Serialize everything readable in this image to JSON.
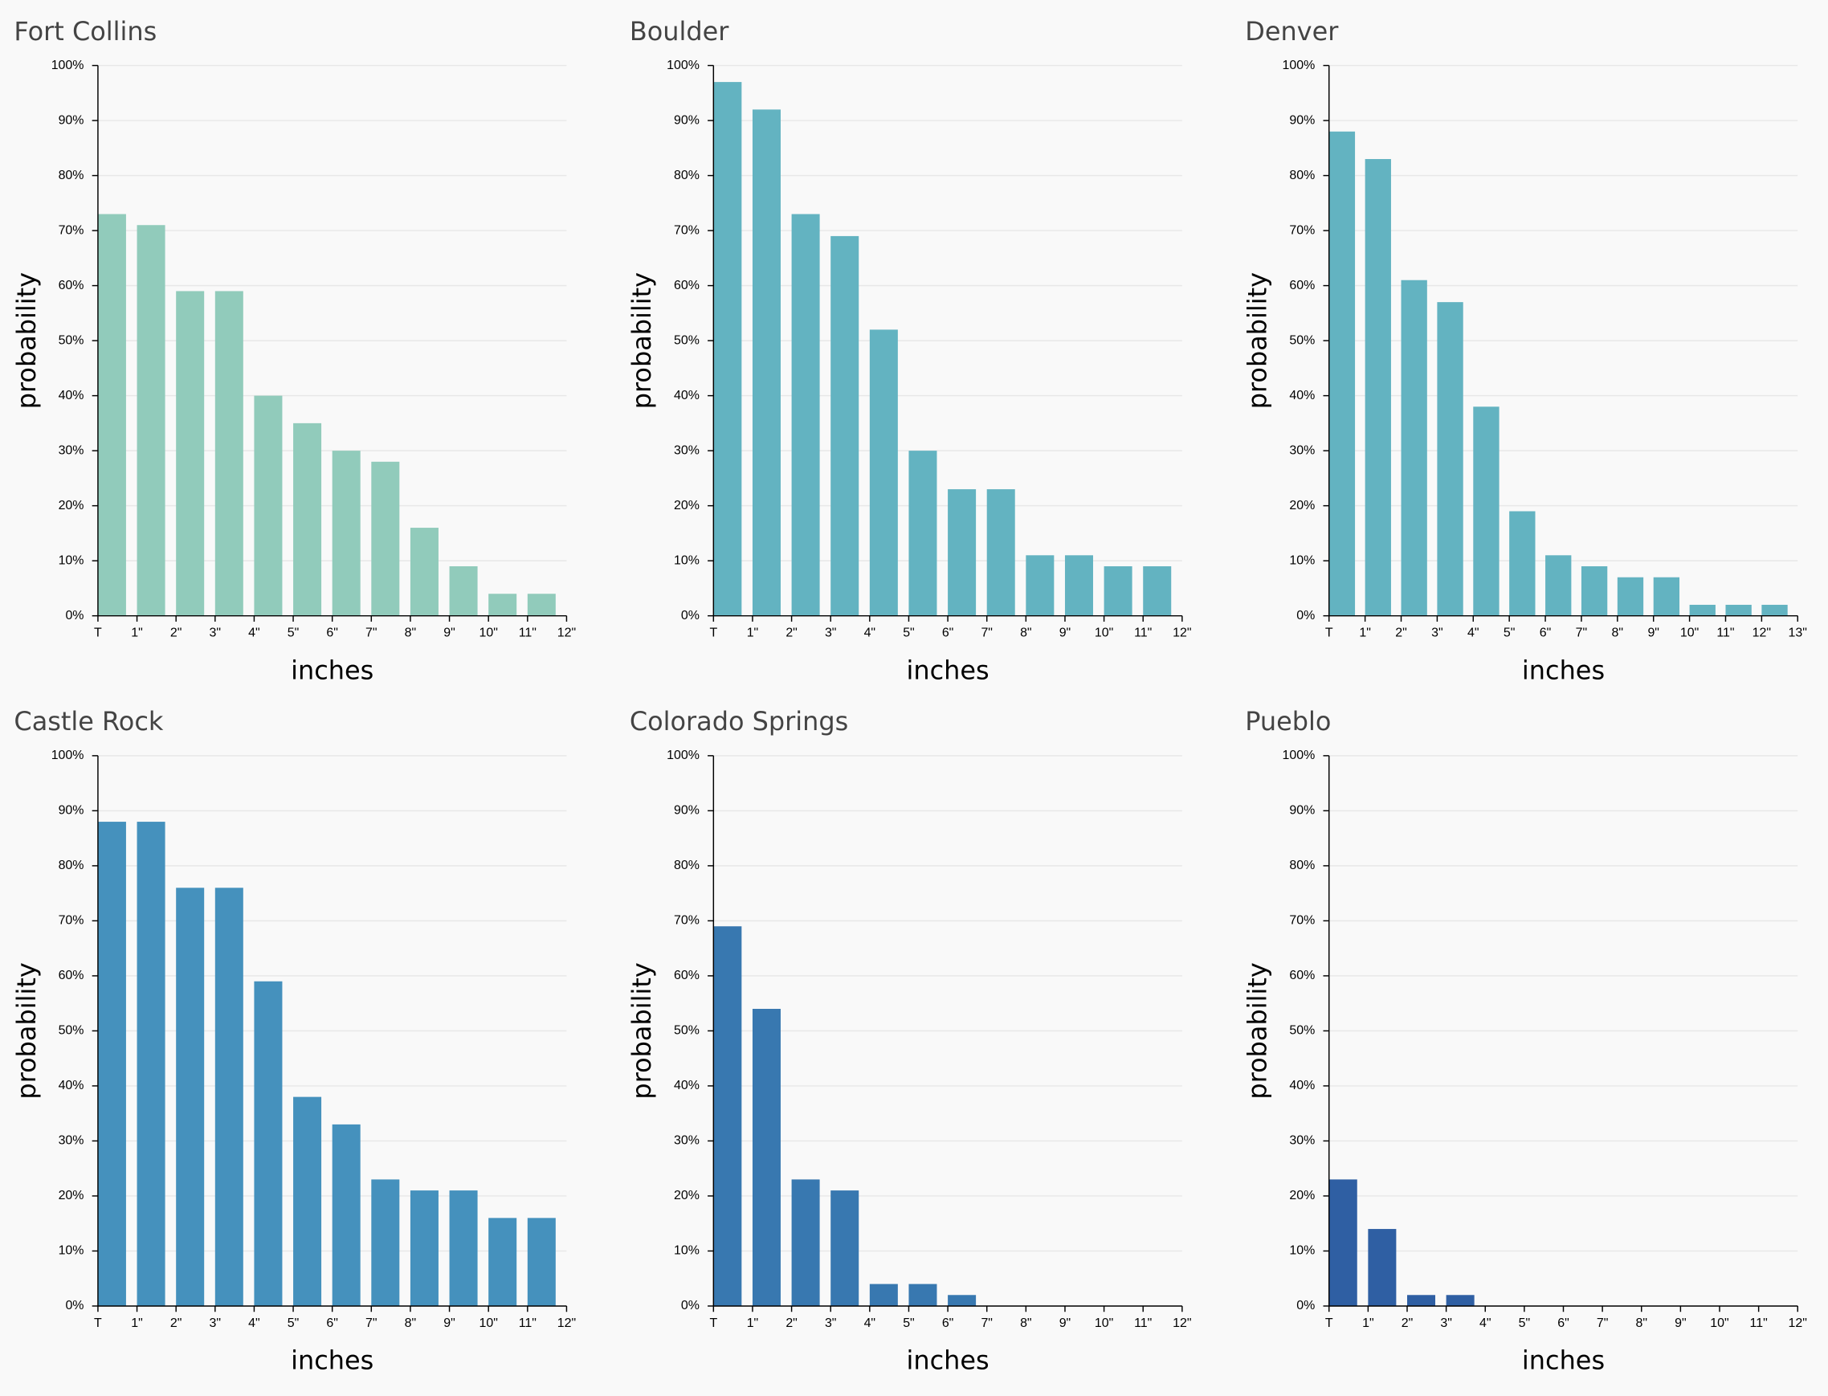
{
  "chart_data": [
    {
      "type": "histogram",
      "title": "Fort Collins",
      "xlabel": "inches",
      "ylabel": "probability",
      "color": "#91cbbb",
      "bins": [
        "T",
        "1\"",
        "2\"",
        "3\"",
        "4\"",
        "5\"",
        "6\"",
        "7\"",
        "8\"",
        "9\"",
        "10\"",
        "11\"",
        "12\""
      ],
      "values": [
        73,
        71,
        59,
        59,
        40,
        35,
        30,
        28,
        16,
        9,
        4,
        4
      ],
      "ylim": [
        0,
        100
      ],
      "yticks": [
        {
          "value": 0,
          "label": "0%"
        },
        {
          "value": 10,
          "label": "10%"
        },
        {
          "value": 20,
          "label": "20%"
        },
        {
          "value": 30,
          "label": "30%"
        },
        {
          "value": 40,
          "label": "40%"
        },
        {
          "value": 50,
          "label": "50%"
        },
        {
          "value": 60,
          "label": "60%"
        },
        {
          "value": 70,
          "label": "70%"
        },
        {
          "value": 80,
          "label": "80%"
        },
        {
          "value": 90,
          "label": "90%"
        },
        {
          "value": 100,
          "label": "100%"
        }
      ],
      "grid": true
    },
    {
      "type": "histogram",
      "title": "Boulder",
      "xlabel": "inches",
      "ylabel": "probability",
      "color": "#63b3c1",
      "bins": [
        "T",
        "1\"",
        "2\"",
        "3\"",
        "4\"",
        "5\"",
        "6\"",
        "7\"",
        "8\"",
        "9\"",
        "10\"",
        "11\"",
        "12\""
      ],
      "values": [
        97,
        92,
        73,
        69,
        52,
        30,
        23,
        23,
        11,
        11,
        9,
        9
      ],
      "ylim": [
        0,
        100
      ],
      "yticks": [
        {
          "value": 0,
          "label": "0%"
        },
        {
          "value": 10,
          "label": "10%"
        },
        {
          "value": 20,
          "label": "20%"
        },
        {
          "value": 30,
          "label": "30%"
        },
        {
          "value": 40,
          "label": "40%"
        },
        {
          "value": 50,
          "label": "50%"
        },
        {
          "value": 60,
          "label": "60%"
        },
        {
          "value": 70,
          "label": "70%"
        },
        {
          "value": 80,
          "label": "80%"
        },
        {
          "value": 90,
          "label": "90%"
        },
        {
          "value": 100,
          "label": "100%"
        }
      ],
      "grid": true
    },
    {
      "type": "histogram",
      "title": "Denver",
      "xlabel": "inches",
      "ylabel": "probability",
      "color": "#63b3c1",
      "bins": [
        "T",
        "1\"",
        "2\"",
        "3\"",
        "4\"",
        "5\"",
        "6\"",
        "7\"",
        "8\"",
        "9\"",
        "10\"",
        "11\"",
        "12\"",
        "13\""
      ],
      "values": [
        88,
        83,
        61,
        57,
        38,
        19,
        11,
        9,
        7,
        7,
        2,
        2,
        2
      ],
      "ylim": [
        0,
        100
      ],
      "yticks": [
        {
          "value": 0,
          "label": "0%"
        },
        {
          "value": 10,
          "label": "10%"
        },
        {
          "value": 20,
          "label": "20%"
        },
        {
          "value": 30,
          "label": "30%"
        },
        {
          "value": 40,
          "label": "40%"
        },
        {
          "value": 50,
          "label": "50%"
        },
        {
          "value": 60,
          "label": "60%"
        },
        {
          "value": 70,
          "label": "70%"
        },
        {
          "value": 80,
          "label": "80%"
        },
        {
          "value": 90,
          "label": "90%"
        },
        {
          "value": 100,
          "label": "100%"
        }
      ],
      "grid": true
    },
    {
      "type": "histogram",
      "title": "Castle Rock",
      "xlabel": "inches",
      "ylabel": "probability",
      "color": "#4591bd",
      "bins": [
        "T",
        "1\"",
        "2\"",
        "3\"",
        "4\"",
        "5\"",
        "6\"",
        "7\"",
        "8\"",
        "9\"",
        "10\"",
        "11\"",
        "12\""
      ],
      "values": [
        88,
        88,
        76,
        76,
        59,
        38,
        33,
        23,
        21,
        21,
        16,
        16
      ],
      "ylim": [
        0,
        100
      ],
      "yticks": [
        {
          "value": 0,
          "label": "0%"
        },
        {
          "value": 10,
          "label": "10%"
        },
        {
          "value": 20,
          "label": "20%"
        },
        {
          "value": 30,
          "label": "30%"
        },
        {
          "value": 40,
          "label": "40%"
        },
        {
          "value": 50,
          "label": "50%"
        },
        {
          "value": 60,
          "label": "60%"
        },
        {
          "value": 70,
          "label": "70%"
        },
        {
          "value": 80,
          "label": "80%"
        },
        {
          "value": 90,
          "label": "90%"
        },
        {
          "value": 100,
          "label": "100%"
        }
      ],
      "grid": true
    },
    {
      "type": "histogram",
      "title": "Colorado Springs",
      "xlabel": "inches",
      "ylabel": "probability",
      "color": "#3878b0",
      "bins": [
        "T",
        "1\"",
        "2\"",
        "3\"",
        "4\"",
        "5\"",
        "6\"",
        "7\"",
        "8\"",
        "9\"",
        "10\"",
        "11\"",
        "12\""
      ],
      "values": [
        69,
        54,
        23,
        21,
        4,
        4,
        2,
        0,
        0,
        0,
        0,
        0
      ],
      "ylim": [
        0,
        100
      ],
      "yticks": [
        {
          "value": 0,
          "label": "0%"
        },
        {
          "value": 10,
          "label": "10%"
        },
        {
          "value": 20,
          "label": "20%"
        },
        {
          "value": 30,
          "label": "30%"
        },
        {
          "value": 40,
          "label": "40%"
        },
        {
          "value": 50,
          "label": "50%"
        },
        {
          "value": 60,
          "label": "60%"
        },
        {
          "value": 70,
          "label": "70%"
        },
        {
          "value": 80,
          "label": "80%"
        },
        {
          "value": 90,
          "label": "90%"
        },
        {
          "value": 100,
          "label": "100%"
        }
      ],
      "grid": true
    },
    {
      "type": "histogram",
      "title": "Pueblo",
      "xlabel": "inches",
      "ylabel": "probability",
      "color": "#2f5fa3",
      "bins": [
        "T",
        "1\"",
        "2\"",
        "3\"",
        "4\"",
        "5\"",
        "6\"",
        "7\"",
        "8\"",
        "9\"",
        "10\"",
        "11\"",
        "12\""
      ],
      "values": [
        23,
        14,
        2,
        2,
        0,
        0,
        0,
        0,
        0,
        0,
        0,
        0
      ],
      "ylim": [
        0,
        100
      ],
      "yticks": [
        {
          "value": 0,
          "label": "0%"
        },
        {
          "value": 10,
          "label": "10%"
        },
        {
          "value": 20,
          "label": "20%"
        },
        {
          "value": 30,
          "label": "30%"
        },
        {
          "value": 40,
          "label": "40%"
        },
        {
          "value": 50,
          "label": "50%"
        },
        {
          "value": 60,
          "label": "60%"
        },
        {
          "value": 70,
          "label": "70%"
        },
        {
          "value": 80,
          "label": "80%"
        },
        {
          "value": 90,
          "label": "90%"
        },
        {
          "value": 100,
          "label": "100%"
        }
      ],
      "grid": true
    }
  ]
}
